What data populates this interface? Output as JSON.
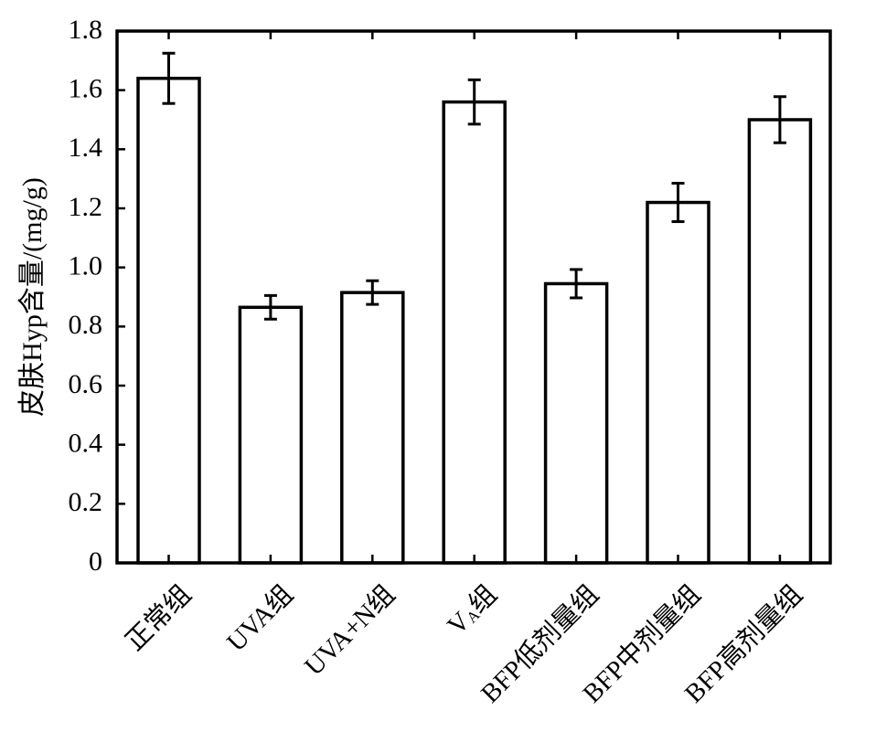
{
  "chart_data": {
    "type": "bar",
    "title": "",
    "xlabel": "",
    "ylabel": "皮肤Hyp含量/(mg/g)",
    "ylim": [
      0,
      1.8
    ],
    "yticks": [
      0,
      0.2,
      0.4,
      0.6,
      0.8,
      1.0,
      1.2,
      1.4,
      1.6,
      1.8
    ],
    "ytick_labels": [
      "0",
      "0.2",
      "0.4",
      "0.6",
      "0.8",
      "1.0",
      "1.2",
      "1.4",
      "1.6",
      "1.8"
    ],
    "grid": false,
    "categories": [
      {
        "label": "正常组",
        "sub": ""
      },
      {
        "label": "UVA组",
        "sub": ""
      },
      {
        "label": "UVA+N组",
        "sub": ""
      },
      {
        "label": "V",
        "sub": "A",
        "suffix": "组"
      },
      {
        "label": "BFP低剂量组",
        "sub": ""
      },
      {
        "label": "BFP中剂量组",
        "sub": ""
      },
      {
        "label": "BFP高剂量组",
        "sub": ""
      }
    ],
    "values": [
      1.64,
      0.865,
      0.915,
      1.56,
      0.945,
      1.22,
      1.5
    ],
    "errors": [
      0.085,
      0.04,
      0.04,
      0.075,
      0.048,
      0.065,
      0.078
    ]
  }
}
